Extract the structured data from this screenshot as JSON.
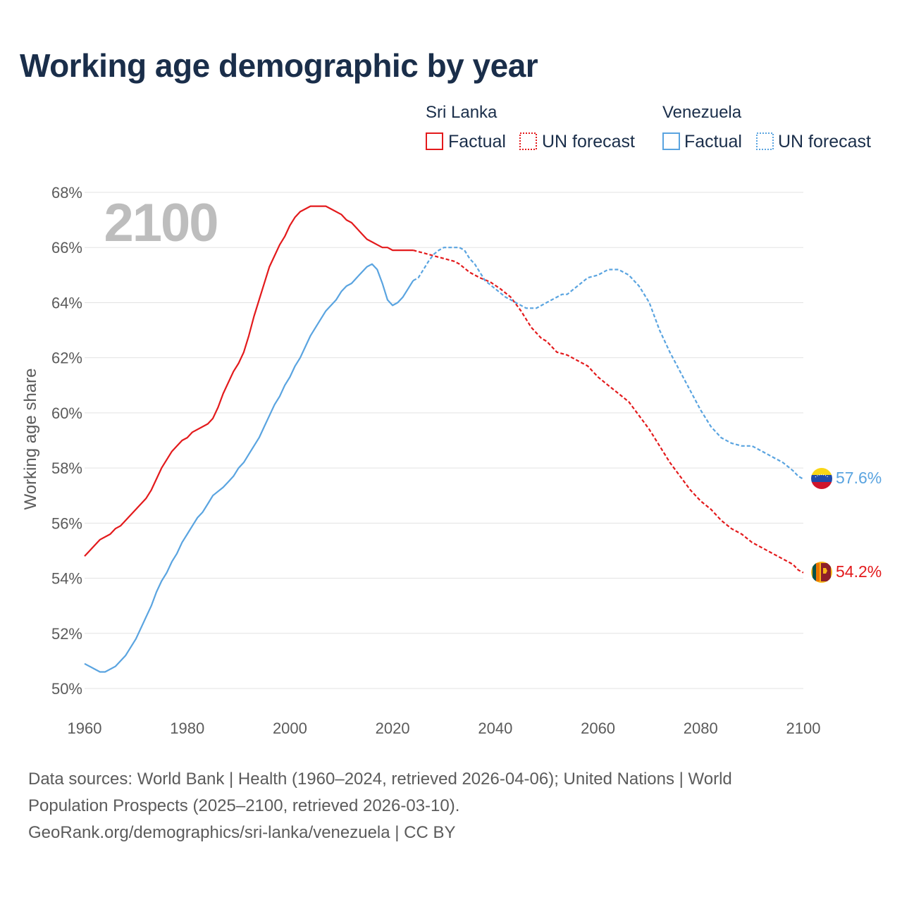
{
  "title": "Working age demographic by year",
  "chart_data": {
    "type": "line",
    "title": "Working age demographic by year",
    "ylabel": "Working age share",
    "xlabel": "",
    "xlim": [
      1960,
      2100
    ],
    "ylim": [
      50,
      68
    ],
    "x_ticks": [
      "1960",
      "1980",
      "2000",
      "2020",
      "2040",
      "2060",
      "2080",
      "2100"
    ],
    "y_ticks": [
      "50%",
      "52%",
      "54%",
      "56%",
      "58%",
      "60%",
      "62%",
      "64%",
      "66%",
      "68%"
    ],
    "year_label": "2100",
    "factual_end_year": 2024,
    "legend": {
      "groups": [
        {
          "name": "Sri Lanka",
          "factual": "Factual",
          "forecast": "UN forecast",
          "color": "#e31a1c"
        },
        {
          "name": "Venezuela",
          "factual": "Factual",
          "forecast": "UN forecast",
          "color": "#5aa4e0"
        }
      ]
    },
    "series": [
      {
        "name": "Sri Lanka",
        "color": "#e31a1c",
        "end_label": "54.2%",
        "flag": "sri-lanka-flag-icon",
        "points": [
          [
            1960,
            54.8
          ],
          [
            1963,
            55.4
          ],
          [
            1965,
            55.6
          ],
          [
            1966,
            55.8
          ],
          [
            1967,
            55.9
          ],
          [
            1970,
            56.5
          ],
          [
            1972,
            56.9
          ],
          [
            1973,
            57.2
          ],
          [
            1975,
            58.0
          ],
          [
            1977,
            58.6
          ],
          [
            1979,
            59.0
          ],
          [
            1980,
            59.1
          ],
          [
            1981,
            59.3
          ],
          [
            1984,
            59.6
          ],
          [
            1985,
            59.8
          ],
          [
            1986,
            60.2
          ],
          [
            1987,
            60.7
          ],
          [
            1989,
            61.5
          ],
          [
            1990,
            61.8
          ],
          [
            1991,
            62.2
          ],
          [
            1992,
            62.8
          ],
          [
            1993,
            63.5
          ],
          [
            1994,
            64.1
          ],
          [
            1995,
            64.7
          ],
          [
            1996,
            65.3
          ],
          [
            1997,
            65.7
          ],
          [
            1998,
            66.1
          ],
          [
            1999,
            66.4
          ],
          [
            2000,
            66.8
          ],
          [
            2001,
            67.1
          ],
          [
            2002,
            67.3
          ],
          [
            2003,
            67.4
          ],
          [
            2004,
            67.5
          ],
          [
            2007,
            67.5
          ],
          [
            2008,
            67.4
          ],
          [
            2010,
            67.2
          ],
          [
            2011,
            67.0
          ],
          [
            2012,
            66.9
          ],
          [
            2013,
            66.7
          ],
          [
            2014,
            66.5
          ],
          [
            2015,
            66.3
          ],
          [
            2016,
            66.2
          ],
          [
            2017,
            66.1
          ],
          [
            2018,
            66.0
          ],
          [
            2019,
            66.0
          ],
          [
            2020,
            65.9
          ],
          [
            2024,
            65.9
          ],
          [
            2025,
            65.85
          ],
          [
            2026,
            65.8
          ],
          [
            2028,
            65.7
          ],
          [
            2030,
            65.6
          ],
          [
            2032,
            65.5
          ],
          [
            2033,
            65.4
          ],
          [
            2035,
            65.1
          ],
          [
            2037,
            64.9
          ],
          [
            2039,
            64.75
          ],
          [
            2041,
            64.5
          ],
          [
            2043,
            64.2
          ],
          [
            2045,
            63.7
          ],
          [
            2047,
            63.1
          ],
          [
            2049,
            62.7
          ],
          [
            2050,
            62.6
          ],
          [
            2052,
            62.2
          ],
          [
            2054,
            62.1
          ],
          [
            2056,
            61.9
          ],
          [
            2058,
            61.7
          ],
          [
            2060,
            61.3
          ],
          [
            2062,
            61.0
          ],
          [
            2064,
            60.7
          ],
          [
            2066,
            60.4
          ],
          [
            2068,
            59.9
          ],
          [
            2070,
            59.4
          ],
          [
            2072,
            58.8
          ],
          [
            2074,
            58.2
          ],
          [
            2076,
            57.7
          ],
          [
            2078,
            57.2
          ],
          [
            2080,
            56.8
          ],
          [
            2082,
            56.5
          ],
          [
            2084,
            56.1
          ],
          [
            2086,
            55.8
          ],
          [
            2088,
            55.6
          ],
          [
            2090,
            55.3
          ],
          [
            2092,
            55.1
          ],
          [
            2094,
            54.9
          ],
          [
            2096,
            54.7
          ],
          [
            2098,
            54.5
          ],
          [
            2099,
            54.3
          ],
          [
            2100,
            54.2
          ]
        ]
      },
      {
        "name": "Venezuela",
        "color": "#5aa4e0",
        "end_label": "57.6%",
        "flag": "venezuela-flag-icon",
        "points": [
          [
            1960,
            50.9
          ],
          [
            1962,
            50.7
          ],
          [
            1963,
            50.6
          ],
          [
            1964,
            50.6
          ],
          [
            1966,
            50.8
          ],
          [
            1968,
            51.2
          ],
          [
            1970,
            51.8
          ],
          [
            1972,
            52.6
          ],
          [
            1973,
            53.0
          ],
          [
            1974,
            53.5
          ],
          [
            1975,
            53.9
          ],
          [
            1976,
            54.2
          ],
          [
            1977,
            54.6
          ],
          [
            1978,
            54.9
          ],
          [
            1979,
            55.3
          ],
          [
            1980,
            55.6
          ],
          [
            1981,
            55.9
          ],
          [
            1982,
            56.2
          ],
          [
            1983,
            56.4
          ],
          [
            1984,
            56.7
          ],
          [
            1985,
            57.0
          ],
          [
            1987,
            57.3
          ],
          [
            1988,
            57.5
          ],
          [
            1989,
            57.7
          ],
          [
            1990,
            58.0
          ],
          [
            1991,
            58.2
          ],
          [
            1992,
            58.5
          ],
          [
            1993,
            58.8
          ],
          [
            1994,
            59.1
          ],
          [
            1995,
            59.5
          ],
          [
            1996,
            59.9
          ],
          [
            1997,
            60.3
          ],
          [
            1998,
            60.6
          ],
          [
            1999,
            61.0
          ],
          [
            2000,
            61.3
          ],
          [
            2001,
            61.7
          ],
          [
            2002,
            62.0
          ],
          [
            2003,
            62.4
          ],
          [
            2004,
            62.8
          ],
          [
            2005,
            63.1
          ],
          [
            2006,
            63.4
          ],
          [
            2007,
            63.7
          ],
          [
            2009,
            64.1
          ],
          [
            2010,
            64.4
          ],
          [
            2011,
            64.6
          ],
          [
            2012,
            64.7
          ],
          [
            2013,
            64.9
          ],
          [
            2014,
            65.1
          ],
          [
            2015,
            65.3
          ],
          [
            2016,
            65.4
          ],
          [
            2017,
            65.2
          ],
          [
            2018,
            64.7
          ],
          [
            2019,
            64.1
          ],
          [
            2020,
            63.9
          ],
          [
            2021,
            64.0
          ],
          [
            2022,
            64.2
          ],
          [
            2023,
            64.5
          ],
          [
            2024,
            64.8
          ],
          [
            2025,
            64.9
          ],
          [
            2026,
            65.2
          ],
          [
            2027,
            65.5
          ],
          [
            2028,
            65.75
          ],
          [
            2029,
            65.9
          ],
          [
            2030,
            66.0
          ],
          [
            2033,
            66.0
          ],
          [
            2034,
            65.9
          ],
          [
            2035,
            65.6
          ],
          [
            2036,
            65.4
          ],
          [
            2037,
            65.1
          ],
          [
            2038,
            64.8
          ],
          [
            2040,
            64.5
          ],
          [
            2042,
            64.2
          ],
          [
            2044,
            64.0
          ],
          [
            2046,
            63.8
          ],
          [
            2048,
            63.8
          ],
          [
            2050,
            64.0
          ],
          [
            2052,
            64.2
          ],
          [
            2053,
            64.3
          ],
          [
            2054,
            64.3
          ],
          [
            2056,
            64.6
          ],
          [
            2058,
            64.9
          ],
          [
            2060,
            65.0
          ],
          [
            2062,
            65.2
          ],
          [
            2064,
            65.2
          ],
          [
            2066,
            65.0
          ],
          [
            2068,
            64.6
          ],
          [
            2070,
            64.0
          ],
          [
            2072,
            63.0
          ],
          [
            2074,
            62.2
          ],
          [
            2076,
            61.5
          ],
          [
            2078,
            60.8
          ],
          [
            2080,
            60.1
          ],
          [
            2082,
            59.5
          ],
          [
            2084,
            59.1
          ],
          [
            2086,
            58.9
          ],
          [
            2088,
            58.8
          ],
          [
            2090,
            58.8
          ],
          [
            2092,
            58.6
          ],
          [
            2094,
            58.4
          ],
          [
            2096,
            58.2
          ],
          [
            2098,
            57.9
          ],
          [
            2099,
            57.7
          ],
          [
            2100,
            57.6
          ]
        ]
      }
    ]
  },
  "sources": {
    "line1": "Data sources: World Bank | Health (1960–2024, retrieved 2026-04-06); United Nations | World",
    "line2": "Population Prospects (2025–2100, retrieved 2026-03-10).",
    "line3": "GeoRank.org/demographics/sri-lanka/venezuela | CC BY"
  }
}
